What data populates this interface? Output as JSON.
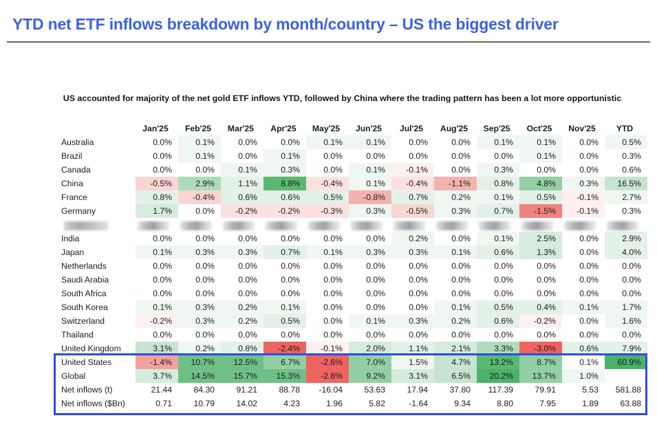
{
  "title": "YTD net ETF inflows breakdown by month/country – US the biggest driver",
  "subtitle": "US accounted for majority of the net gold ETF inflows YTD, followed by China where the trading pattern has been a lot more opportunistic",
  "colors": {
    "title_blue": "#3b62e6",
    "title_rule_gray": "#67665f",
    "highlight_box_blue": "#2b4ce0",
    "text": "#1b1b1b"
  },
  "chart_data": {
    "type": "heatmap",
    "title": "YTD net ETF inflows breakdown by month/country",
    "legend_position": "none",
    "grid": false,
    "columns": [
      "Jan'25",
      "Feb'25",
      "Mar'25",
      "Apr'25",
      "May'25",
      "Jun'25",
      "Jul'25",
      "Aug'25",
      "Sep'25",
      "Oct'25",
      "Nov'25",
      "YTD"
    ],
    "palette": {
      "W": "#ffffff",
      "G0": "#f0f7f2",
      "G1": "#e4f1e9",
      "G2": "#d5ebdc",
      "G3": "#c7e4d0",
      "G4": "#aedcbb",
      "G5": "#93cfa4",
      "G6": "#6fc086",
      "G7": "#5ab873",
      "G8": "#4cb269",
      "R0": "#fdf0ef",
      "R1": "#fbe2e1",
      "R2": "#f8d6d4",
      "R3": "#f4b2ae",
      "R4": "#f2a19d",
      "R5": "#f0837e",
      "R6": "#ed6461"
    },
    "rows": [
      {
        "label": "Australia",
        "redacted": false,
        "values": [
          "0.0%",
          "0.1%",
          "0.0%",
          "0.0%",
          "0.1%",
          "0.1%",
          "0.0%",
          "0.0%",
          "0.1%",
          "0.1%",
          "0.0%",
          "0.5%"
        ],
        "cell_colors": [
          "W",
          "G0",
          "W",
          "W",
          "G0",
          "G0",
          "W",
          "W",
          "G0",
          "G0",
          "W",
          "G0"
        ]
      },
      {
        "label": "Brazil",
        "redacted": false,
        "values": [
          "0.0%",
          "0.1%",
          "0.0%",
          "0.1%",
          "0.0%",
          "0.0%",
          "0.0%",
          "0.0%",
          "0.0%",
          "0.1%",
          "0.0%",
          "0.3%"
        ],
        "cell_colors": [
          "W",
          "G0",
          "W",
          "G0",
          "W",
          "W",
          "W",
          "W",
          "W",
          "G0",
          "W",
          "W"
        ]
      },
      {
        "label": "Canada",
        "redacted": false,
        "values": [
          "0.0%",
          "0.0%",
          "0.1%",
          "0.3%",
          "0.0%",
          "0.1%",
          "-0.1%",
          "0.0%",
          "0.3%",
          "0.0%",
          "0.0%",
          "0.6%"
        ],
        "cell_colors": [
          "W",
          "W",
          "G0",
          "G0",
          "W",
          "G0",
          "R0",
          "W",
          "G0",
          "W",
          "W",
          "W"
        ]
      },
      {
        "label": "China",
        "redacted": false,
        "values": [
          "-0.5%",
          "2.9%",
          "1.1%",
          "8.8%",
          "-0.4%",
          "0.1%",
          "-0.4%",
          "-1.1%",
          "0.8%",
          "4.8%",
          "0.3%",
          "16.5%"
        ],
        "cell_colors": [
          "R2",
          "G4",
          "G1",
          "G7",
          "R1",
          "G0",
          "R1",
          "R3",
          "G1",
          "G5",
          "G0",
          "G3"
        ]
      },
      {
        "label": "France",
        "redacted": false,
        "values": [
          "0.8%",
          "-0.4%",
          "0.6%",
          "0.6%",
          "0.5%",
          "-0.8%",
          "0.7%",
          "0.2%",
          "0.1%",
          "0.5%",
          "-0.1%",
          "2.7%"
        ],
        "cell_colors": [
          "G1",
          "R2",
          "G1",
          "G1",
          "G1",
          "R3",
          "G1",
          "G0",
          "G0",
          "G1",
          "R0",
          "G0"
        ]
      },
      {
        "label": "Germany",
        "redacted": false,
        "values": [
          "1.7%",
          "0.0%",
          "-0.2%",
          "-0.2%",
          "-0.3%",
          "0.3%",
          "-0.5%",
          "0.3%",
          "0.7%",
          "-1.5%",
          "-0.1%",
          "0.3%"
        ],
        "cell_colors": [
          "G2",
          "W",
          "R1",
          "R1",
          "R1",
          "G0",
          "R2",
          "G0",
          "G1",
          "R5",
          "R0",
          "W"
        ]
      },
      {
        "label": "",
        "redacted": true,
        "values": [
          "",
          "",
          "",
          "",
          "",
          "",
          "",
          "",
          "",
          "",
          "",
          ""
        ],
        "cell_colors": [
          "W",
          "W",
          "W",
          "W",
          "W",
          "W",
          "W",
          "W",
          "W",
          "W",
          "W",
          "W"
        ]
      },
      {
        "label": "India",
        "redacted": false,
        "values": [
          "0.0%",
          "0.0%",
          "0.0%",
          "0.0%",
          "0.0%",
          "0.0%",
          "0.2%",
          "0.0%",
          "0.1%",
          "2.5%",
          "0.0%",
          "2.9%"
        ],
        "cell_colors": [
          "W",
          "W",
          "W",
          "W",
          "W",
          "W",
          "G0",
          "W",
          "G0",
          "G2",
          "W",
          "G1"
        ]
      },
      {
        "label": "Japan",
        "redacted": false,
        "values": [
          "0.1%",
          "0.3%",
          "0.3%",
          "0.7%",
          "0.1%",
          "0.3%",
          "0.3%",
          "0.1%",
          "0.6%",
          "1.3%",
          "0.0%",
          "4.0%"
        ],
        "cell_colors": [
          "G0",
          "G0",
          "G0",
          "G1",
          "G0",
          "G0",
          "G0",
          "G0",
          "G1",
          "G2",
          "W",
          "G1"
        ]
      },
      {
        "label": "Netherlands",
        "redacted": false,
        "values": [
          "0.0%",
          "0.0%",
          "0.0%",
          "0.0%",
          "0.0%",
          "0.0%",
          "0.0%",
          "0.0%",
          "0.0%",
          "0.0%",
          "0.0%",
          "0.0%"
        ],
        "cell_colors": [
          "W",
          "W",
          "W",
          "W",
          "W",
          "W",
          "W",
          "W",
          "W",
          "W",
          "W",
          "W"
        ]
      },
      {
        "label": "Saudi Arabia",
        "redacted": false,
        "values": [
          "0.0%",
          "0.0%",
          "0.0%",
          "0.0%",
          "0.0%",
          "0.0%",
          "0.0%",
          "0.0%",
          "0.0%",
          "0.0%",
          "0.0%",
          "0.0%"
        ],
        "cell_colors": [
          "W",
          "W",
          "W",
          "W",
          "W",
          "W",
          "W",
          "W",
          "W",
          "W",
          "W",
          "W"
        ]
      },
      {
        "label": "South Africa",
        "redacted": false,
        "values": [
          "0.0%",
          "0.0%",
          "0.0%",
          "0.0%",
          "0.0%",
          "0.0%",
          "0.0%",
          "0.0%",
          "0.0%",
          "0.0%",
          "0.0%",
          "0.0%"
        ],
        "cell_colors": [
          "W",
          "W",
          "W",
          "W",
          "W",
          "W",
          "W",
          "W",
          "W",
          "W",
          "W",
          "W"
        ]
      },
      {
        "label": "South Korea",
        "redacted": false,
        "values": [
          "0.1%",
          "0.3%",
          "0.2%",
          "0.1%",
          "0.0%",
          "0.0%",
          "0.0%",
          "0.1%",
          "0.5%",
          "0.4%",
          "0.1%",
          "1.7%"
        ],
        "cell_colors": [
          "G0",
          "G0",
          "G0",
          "G0",
          "W",
          "W",
          "W",
          "G0",
          "G1",
          "G1",
          "G0",
          "G0"
        ]
      },
      {
        "label": "Switzerland",
        "redacted": false,
        "values": [
          "-0.2%",
          "0.3%",
          "0.2%",
          "0.5%",
          "0.0%",
          "0.1%",
          "0.3%",
          "0.2%",
          "0.6%",
          "-0.2%",
          "0.0%",
          "1.6%"
        ],
        "cell_colors": [
          "R0",
          "G0",
          "G0",
          "G1",
          "W",
          "G0",
          "G0",
          "G0",
          "G1",
          "R0",
          "W",
          "G0"
        ]
      },
      {
        "label": "Thailand",
        "redacted": false,
        "values": [
          "0.0%",
          "0.0%",
          "0.0%",
          "0.0%",
          "0.0%",
          "0.0%",
          "0.0%",
          "0.0%",
          "0.0%",
          "0.0%",
          "0.0%",
          "0.0%"
        ],
        "cell_colors": [
          "W",
          "W",
          "W",
          "W",
          "W",
          "W",
          "W",
          "W",
          "W",
          "W",
          "W",
          "W"
        ]
      },
      {
        "label": "United Kingdom",
        "redacted": false,
        "values": [
          "3.1%",
          "0.2%",
          "0.8%",
          "-2.4%",
          "-0.1%",
          "2.0%",
          "1.1%",
          "2.1%",
          "3.3%",
          "-3.0%",
          "0.6%",
          "7.9%"
        ],
        "cell_colors": [
          "G3",
          "G0",
          "G1",
          "R6",
          "R0",
          "G2",
          "G1",
          "G2",
          "G4",
          "R6",
          "G1",
          "G1"
        ]
      },
      {
        "label": "United States",
        "redacted": false,
        "values": [
          "-1.4%",
          "10.7%",
          "12.5%",
          "6.7%",
          "-2.6%",
          "7.0%",
          "1.5%",
          "4.7%",
          "13.2%",
          "8.7%",
          "0.1%",
          "60.9%"
        ],
        "cell_colors": [
          "R4",
          "G6",
          "G6",
          "G5",
          "R6",
          "G5",
          "G0",
          "G3",
          "G7",
          "G5",
          "W",
          "G8"
        ]
      },
      {
        "label": "Global",
        "redacted": false,
        "values": [
          "3.7%",
          "14.5%",
          "15.7%",
          "15.3%",
          "-2.8%",
          "9.2%",
          "3.1%",
          "6.5%",
          "20.2%",
          "13.7%",
          "1.0%",
          ""
        ],
        "cell_colors": [
          "G2",
          "G6",
          "G6",
          "G6",
          "R6",
          "G5",
          "G2",
          "G3",
          "G8",
          "G5",
          "G0",
          "W"
        ]
      },
      {
        "label": "Net inflows (t)",
        "redacted": false,
        "values": [
          "21.44",
          "84.30",
          "91.21",
          "88.78",
          "-16.04",
          "53.63",
          "17.94",
          "37.80",
          "117.39",
          "79.91",
          "5.53",
          "581.88"
        ],
        "cell_colors": [
          "W",
          "W",
          "W",
          "W",
          "W",
          "W",
          "W",
          "W",
          "W",
          "W",
          "W",
          "W"
        ]
      },
      {
        "label": "Net inflows ($Bn)",
        "redacted": false,
        "values": [
          "0.71",
          "10.79",
          "14.02",
          "4.23",
          "1.96",
          "5.82",
          "-1.64",
          "9.34",
          "8.80",
          "7.95",
          "1.89",
          "63.88"
        ],
        "cell_colors": [
          "W",
          "W",
          "W",
          "W",
          "W",
          "W",
          "W",
          "W",
          "W",
          "W",
          "W",
          "W"
        ]
      }
    ],
    "highlighted_rows": [
      "United States",
      "Global",
      "Net inflows (t)",
      "Net inflows ($Bn)"
    ]
  }
}
